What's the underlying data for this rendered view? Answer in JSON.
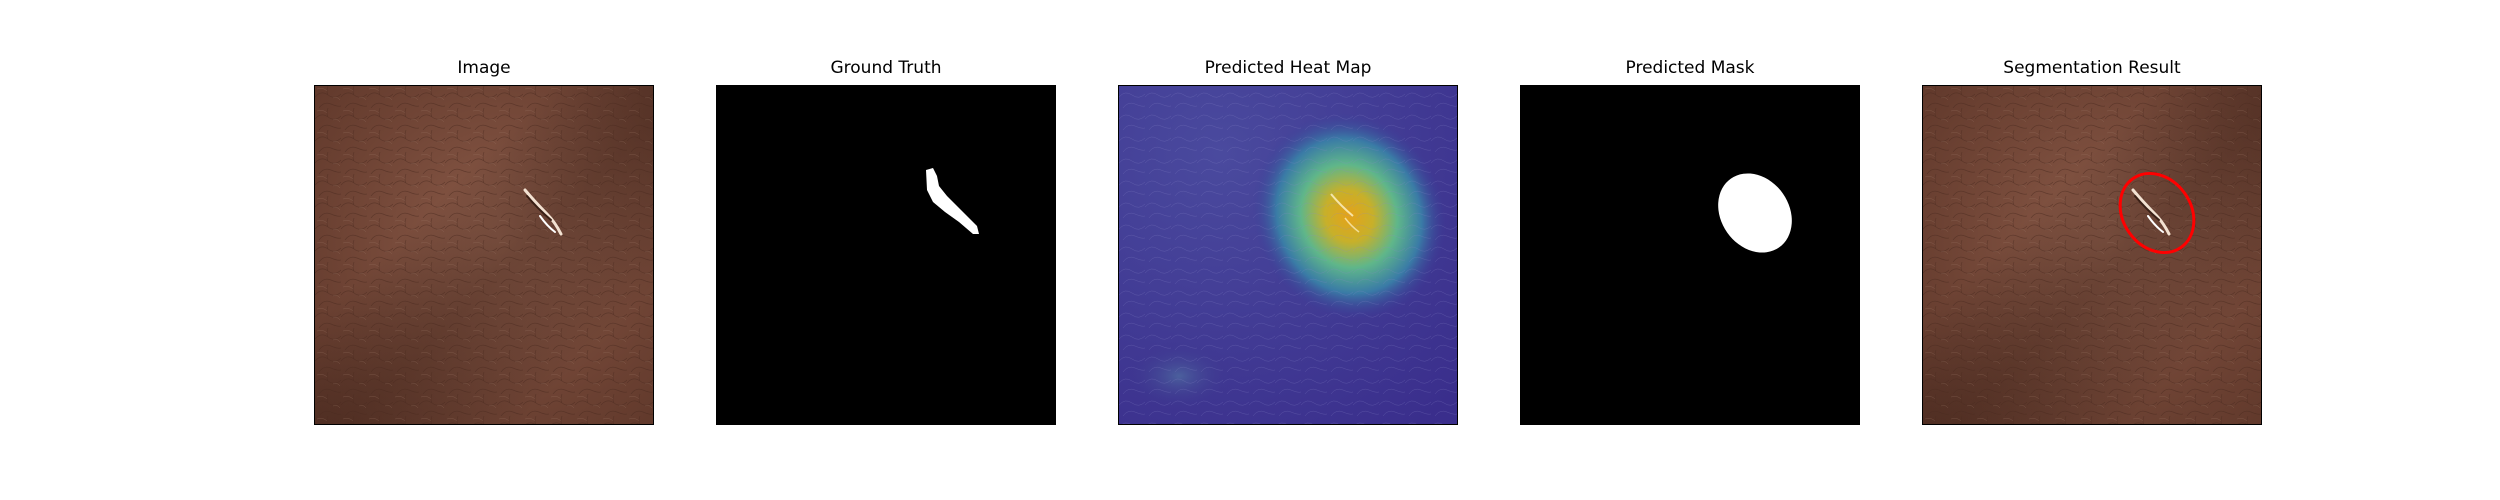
{
  "figure": {
    "panels": [
      {
        "title": "Image"
      },
      {
        "title": "Ground Truth"
      },
      {
        "title": "Predicted Heat Map"
      },
      {
        "title": "Predicted Mask"
      },
      {
        "title": "Segmentation Result"
      }
    ],
    "colors": {
      "leather": "#7a4a3a",
      "leather_dark": "#5c3528",
      "mask_background": "#000000",
      "mask_foreground": "#ffffff",
      "heatmap_low": "#3b2f8f",
      "heatmap_high": "#f0a51c",
      "contour": "#ff0000"
    }
  }
}
